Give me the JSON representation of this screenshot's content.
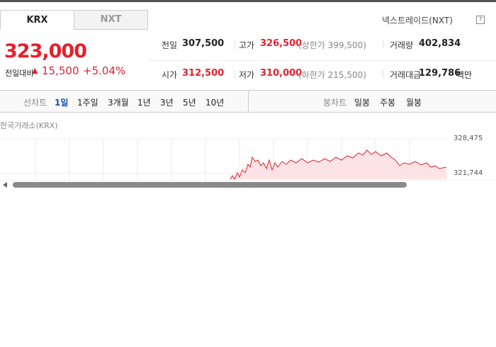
{
  "tabs": [
    "KRX",
    "NXT"
  ],
  "nxt_link": "넥스트레이드(NXT)",
  "help_icon": "?",
  "price": "323,000",
  "change": {
    "label": "전일대비",
    "amount": "15,500",
    "percent": "+5.04%"
  },
  "stats": [
    [
      {
        "label": "전일",
        "value": "307,500"
      },
      {
        "label": "고가",
        "value": "326,500",
        "note": "(상한가 399,500)"
      },
      {
        "label": "거래량",
        "value": "402,834"
      }
    ],
    [
      {
        "label": "시가",
        "value": "312,500"
      },
      {
        "label": "저가",
        "value": "310,000",
        "note": "(하한가 215,500)"
      },
      {
        "label": "거래대금",
        "value": "129,786",
        "unit": "백만"
      }
    ]
  ],
  "line_chart_label": "선차트",
  "line_periods": [
    "1일",
    "1주일",
    "3개월",
    "1년",
    "3년",
    "5년",
    "10년"
  ],
  "candle_chart_label": "봉차트",
  "candle_periods": [
    "일봉",
    "주봉",
    "월봉"
  ],
  "exchange": "한국거래소(KRX)",
  "axis_labels": [
    "328,475",
    "321,744"
  ]
}
